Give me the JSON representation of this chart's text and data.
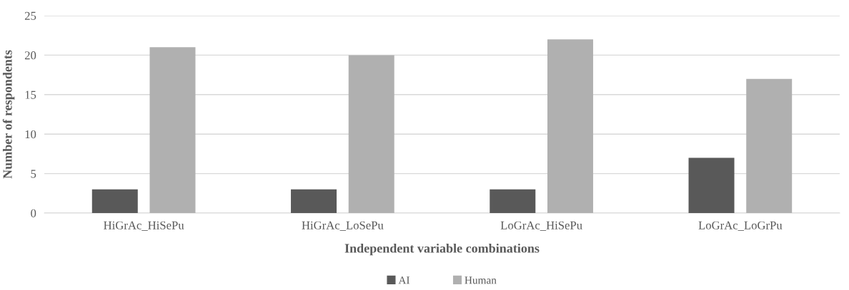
{
  "chart_data": {
    "type": "bar",
    "xlabel": "Independent variable combinations",
    "ylabel": "Number of respondents",
    "categories": [
      "HiGrAc_HiSePu",
      "HiGrAc_LoSePu",
      "LoGrAc_HiSePu",
      "LoGrAc_LoGrPu"
    ],
    "series": [
      {
        "name": "AI",
        "color": "#595959",
        "values": [
          3,
          3,
          3,
          7
        ]
      },
      {
        "name": "Human",
        "color": "#b0b0b0",
        "values": [
          21,
          20,
          22,
          17
        ]
      }
    ],
    "ylim": [
      0,
      25
    ],
    "yticks": [
      0,
      5,
      10,
      15,
      20,
      25
    ],
    "grid": "y",
    "legend": "bottom"
  }
}
